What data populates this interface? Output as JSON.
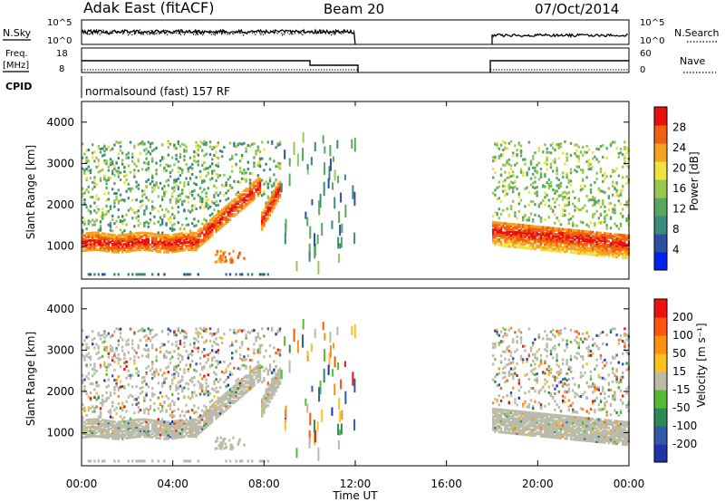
{
  "header": {
    "title": "Adak East (fitACF)",
    "beam": "Beam 20",
    "date": "07/Oct/2014"
  },
  "nsky_panel": {
    "left_label": "N.Sky",
    "right_label": "N.Search",
    "left_ticks": [
      "10^5",
      "10^0"
    ],
    "right_ticks": [
      "10^5",
      "10^0"
    ]
  },
  "freq_panel": {
    "left_label": "Freq.",
    "left_unit": "[MHz]",
    "right_label": "Nave",
    "left_ticks": [
      "18",
      "8"
    ],
    "right_ticks": [
      "60",
      "0"
    ]
  },
  "cpid_panel": {
    "label": "CPID",
    "mode": "normalsound (fast) 157 RF"
  },
  "colorbars": {
    "power": {
      "label": "Power [dB]",
      "ticks": [
        "28",
        "24",
        "20",
        "16",
        "12",
        "8",
        "4"
      ],
      "colors": [
        "#0022ee",
        "#2a50a0",
        "#3a8a80",
        "#5aa860",
        "#98c850",
        "#f0e040",
        "#f8a020",
        "#f06010",
        "#e81010"
      ]
    },
    "velocity": {
      "label": "Velocity [m s⁻¹]",
      "ticks": [
        "200",
        "100",
        "50",
        "15",
        "-15",
        "-50",
        "-100",
        "-200"
      ],
      "colors": [
        "#2233aa",
        "#2f5aa5",
        "#2e8a55",
        "#55bb33",
        "#bbbbaa",
        "#ffc020",
        "#ff9010",
        "#ff5510",
        "#ee1111"
      ]
    }
  },
  "chart_data": [
    {
      "type": "heatmap",
      "name": "power",
      "ylabel": "Slant Range [km]",
      "yticks": [
        "4000",
        "3000",
        "2000",
        "1000"
      ],
      "ylim": [
        200,
        4500
      ],
      "xlim": [
        0,
        24
      ],
      "echo_regions": [
        {
          "x": [
            0.0,
            8.7
          ],
          "range_km": [
            900,
            3500
          ],
          "peak_power_db": 30
        },
        {
          "x": [
            18.0,
            24.0
          ],
          "range_km": [
            900,
            3500
          ],
          "peak_power_db": 30
        }
      ],
      "data_gap_hours": [
        12.0,
        18.0
      ]
    },
    {
      "type": "heatmap",
      "name": "velocity",
      "ylabel": "Slant Range [km]",
      "xlabel": "Time UT",
      "yticks": [
        "4000",
        "3000",
        "2000",
        "1000"
      ],
      "xticks": [
        "00:00",
        "04:00",
        "08:00",
        "12:00",
        "16:00",
        "20:00",
        "00:00"
      ],
      "ylim": [
        200,
        4500
      ],
      "xlim": [
        0,
        24
      ],
      "dominant_velocity_ms": [
        -15,
        15
      ]
    }
  ]
}
